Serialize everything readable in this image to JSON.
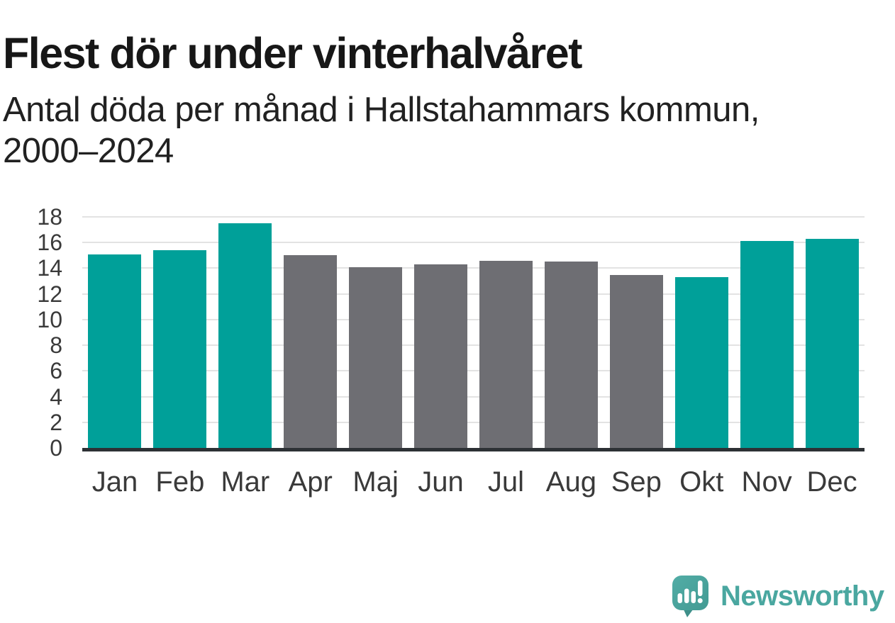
{
  "header": {
    "title": "Flest dör under vinterhalvåret",
    "subtitle_line1": "Antal döda per månad i Hallstahammars kommun,",
    "subtitle_line2": "2000–2024"
  },
  "chart_data": {
    "type": "bar",
    "title": "Flest dör under vinterhalvåret",
    "subtitle": "Antal döda per månad i Hallstahammars kommun, 2000–2024",
    "categories": [
      "Jan",
      "Feb",
      "Mar",
      "Apr",
      "Maj",
      "Jun",
      "Jul",
      "Aug",
      "Sep",
      "Okt",
      "Nov",
      "Dec"
    ],
    "values": [
      15.1,
      15.4,
      17.5,
      15.0,
      14.1,
      14.3,
      14.6,
      14.5,
      13.5,
      13.3,
      16.1,
      16.3
    ],
    "highlighted": [
      true,
      true,
      true,
      false,
      false,
      false,
      false,
      false,
      false,
      true,
      true,
      true
    ],
    "colors": {
      "highlight": "#00a099",
      "default": "#6e6e73"
    },
    "xlabel": "",
    "ylabel": "",
    "ylim": [
      0,
      18
    ],
    "ytick_step": 2,
    "grid": "horizontal",
    "legend": "none"
  },
  "footer": {
    "brand": "Newsworthy",
    "logo_icon": "newsworthy-speech-bubble-chart-icon",
    "brand_color": "#4aa7a0"
  }
}
